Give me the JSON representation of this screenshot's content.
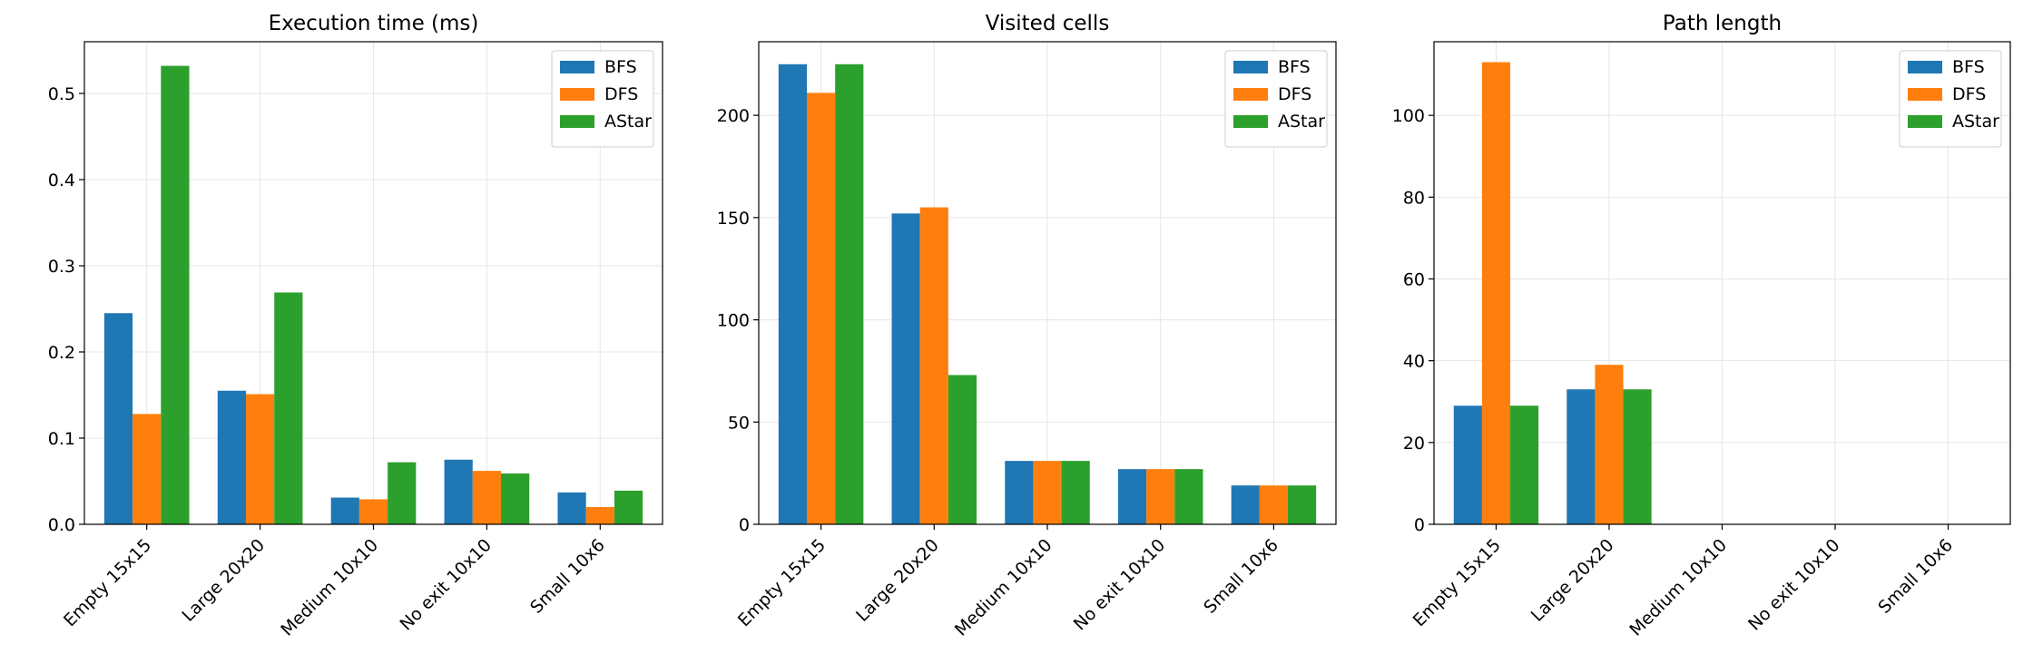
{
  "chart_data": [
    {
      "type": "bar",
      "title": "Execution time (ms)",
      "categories": [
        "Empty 15x15",
        "Large 20x20",
        "Medium 10x10",
        "No exit 10x10",
        "Small 10x6"
      ],
      "series": [
        {
          "name": "BFS",
          "color": "#1f77b4",
          "values": [
            0.245,
            0.155,
            0.031,
            0.075,
            0.037
          ]
        },
        {
          "name": "DFS",
          "color": "#ff7f0e",
          "values": [
            0.128,
            0.151,
            0.029,
            0.062,
            0.02
          ]
        },
        {
          "name": "AStar",
          "color": "#2ca02c",
          "values": [
            0.532,
            0.269,
            0.072,
            0.059,
            0.039
          ]
        }
      ],
      "ylim": [
        0,
        0.56
      ],
      "yticks": [
        0.0,
        0.1,
        0.2,
        0.3,
        0.4,
        0.5
      ],
      "ytick_labels": [
        "0.0",
        "0.1",
        "0.2",
        "0.3",
        "0.4",
        "0.5"
      ],
      "grid": true,
      "legend": "top-right"
    },
    {
      "type": "bar",
      "title": "Visited cells",
      "categories": [
        "Empty 15x15",
        "Large 20x20",
        "Medium 10x10",
        "No exit 10x10",
        "Small 10x6"
      ],
      "series": [
        {
          "name": "BFS",
          "color": "#1f77b4",
          "values": [
            225,
            152,
            31,
            27,
            19
          ]
        },
        {
          "name": "DFS",
          "color": "#ff7f0e",
          "values": [
            211,
            155,
            31,
            27,
            19
          ]
        },
        {
          "name": "AStar",
          "color": "#2ca02c",
          "values": [
            225,
            73,
            31,
            27,
            19
          ]
        }
      ],
      "ylim": [
        0,
        236
      ],
      "yticks": [
        0,
        50,
        100,
        150,
        200
      ],
      "ytick_labels": [
        "0",
        "50",
        "100",
        "150",
        "200"
      ],
      "grid": true,
      "legend": "top-right"
    },
    {
      "type": "bar",
      "title": "Path length",
      "categories": [
        "Empty 15x15",
        "Large 20x20",
        "Medium 10x10",
        "No exit 10x10",
        "Small 10x6"
      ],
      "series": [
        {
          "name": "BFS",
          "color": "#1f77b4",
          "values": [
            29,
            33,
            0,
            0,
            0
          ]
        },
        {
          "name": "DFS",
          "color": "#ff7f0e",
          "values": [
            113,
            39,
            0,
            0,
            0
          ]
        },
        {
          "name": "AStar",
          "color": "#2ca02c",
          "values": [
            29,
            33,
            0,
            0,
            0
          ]
        }
      ],
      "ylim": [
        0,
        118
      ],
      "yticks": [
        0,
        20,
        40,
        60,
        80,
        100
      ],
      "ytick_labels": [
        "0",
        "20",
        "40",
        "60",
        "80",
        "100"
      ],
      "grid": true,
      "legend": "top-right"
    }
  ]
}
